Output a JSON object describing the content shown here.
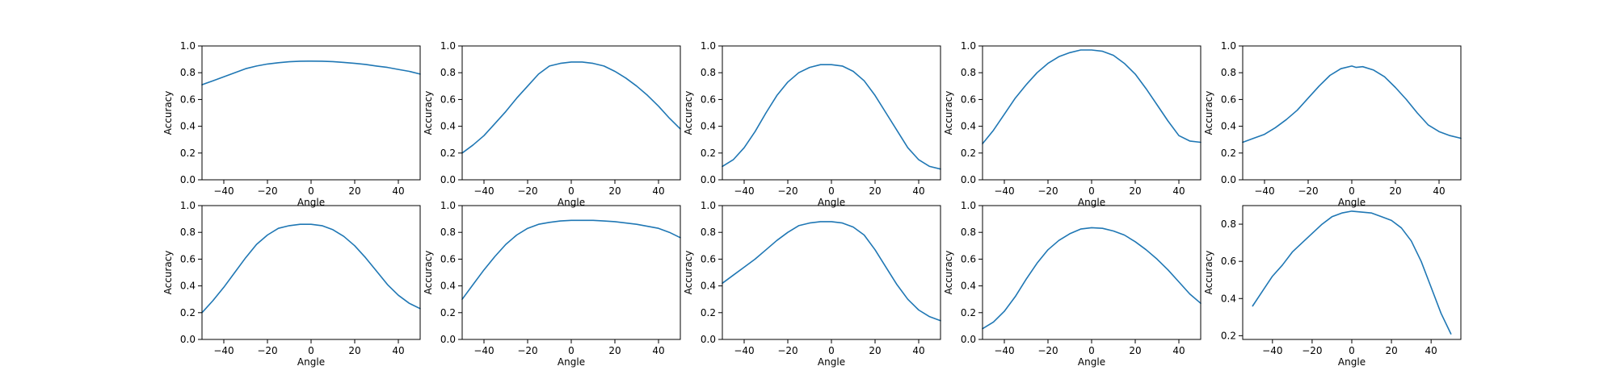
{
  "style": {
    "line_color": "#1f77b4",
    "background": "#ffffff"
  },
  "chart_data": [
    {
      "type": "line",
      "xlabel": "Angle",
      "ylabel": "Accuracy",
      "xlim": [
        -50,
        50
      ],
      "ylim": [
        0,
        1
      ],
      "xticks": [
        -40,
        -20,
        0,
        20,
        40
      ],
      "yticks": [
        0.0,
        0.2,
        0.4,
        0.6,
        0.8,
        1.0
      ],
      "xtick_labels": [
        "−40",
        "−20",
        "0",
        "20",
        "40"
      ],
      "ytick_labels": [
        "0.0",
        "0.2",
        "0.4",
        "0.6",
        "0.8",
        "1.0"
      ],
      "series": [
        {
          "x": [
            -50,
            -45,
            -40,
            -35,
            -30,
            -25,
            -20,
            -15,
            -10,
            -5,
            0,
            5,
            10,
            15,
            20,
            25,
            30,
            35,
            40,
            45,
            50
          ],
          "y": [
            0.71,
            0.74,
            0.77,
            0.8,
            0.83,
            0.85,
            0.865,
            0.875,
            0.882,
            0.886,
            0.887,
            0.886,
            0.883,
            0.877,
            0.87,
            0.862,
            0.85,
            0.84,
            0.825,
            0.81,
            0.79
          ]
        }
      ]
    },
    {
      "type": "line",
      "xlabel": "Angle",
      "ylabel": "Accuracy",
      "xlim": [
        -50,
        50
      ],
      "ylim": [
        0,
        1
      ],
      "xticks": [
        -40,
        -20,
        0,
        20,
        40
      ],
      "yticks": [
        0.0,
        0.2,
        0.4,
        0.6,
        0.8,
        1.0
      ],
      "xtick_labels": [
        "−40",
        "−20",
        "0",
        "20",
        "40"
      ],
      "ytick_labels": [
        "0.0",
        "0.2",
        "0.4",
        "0.6",
        "0.8",
        "1.0"
      ],
      "series": [
        {
          "x": [
            -50,
            -45,
            -40,
            -35,
            -30,
            -25,
            -20,
            -15,
            -10,
            -5,
            0,
            5,
            10,
            15,
            20,
            25,
            30,
            35,
            40,
            45,
            50
          ],
          "y": [
            0.2,
            0.26,
            0.33,
            0.42,
            0.51,
            0.61,
            0.7,
            0.79,
            0.85,
            0.87,
            0.88,
            0.88,
            0.87,
            0.85,
            0.81,
            0.76,
            0.7,
            0.63,
            0.55,
            0.46,
            0.38
          ]
        }
      ]
    },
    {
      "type": "line",
      "xlabel": "Angle",
      "ylabel": "Accuracy",
      "xlim": [
        -50,
        50
      ],
      "ylim": [
        0,
        1
      ],
      "xticks": [
        -40,
        -20,
        0,
        20,
        40
      ],
      "yticks": [
        0.0,
        0.2,
        0.4,
        0.6,
        0.8,
        1.0
      ],
      "xtick_labels": [
        "−40",
        "−20",
        "0",
        "20",
        "40"
      ],
      "ytick_labels": [
        "0.0",
        "0.2",
        "0.4",
        "0.6",
        "0.8",
        "1.0"
      ],
      "series": [
        {
          "x": [
            -50,
            -45,
            -40,
            -35,
            -30,
            -25,
            -20,
            -15,
            -10,
            -5,
            0,
            5,
            10,
            15,
            20,
            25,
            30,
            35,
            40,
            45,
            50
          ],
          "y": [
            0.1,
            0.15,
            0.24,
            0.36,
            0.5,
            0.63,
            0.73,
            0.8,
            0.84,
            0.86,
            0.86,
            0.85,
            0.81,
            0.74,
            0.63,
            0.5,
            0.37,
            0.24,
            0.15,
            0.1,
            0.08
          ]
        }
      ]
    },
    {
      "type": "line",
      "xlabel": "Angle",
      "ylabel": "Accuracy",
      "xlim": [
        -50,
        50
      ],
      "ylim": [
        0,
        1
      ],
      "xticks": [
        -40,
        -20,
        0,
        20,
        40
      ],
      "yticks": [
        0.0,
        0.2,
        0.4,
        0.6,
        0.8,
        1.0
      ],
      "xtick_labels": [
        "−40",
        "−20",
        "0",
        "20",
        "40"
      ],
      "ytick_labels": [
        "0.0",
        "0.2",
        "0.4",
        "0.6",
        "0.8",
        "1.0"
      ],
      "series": [
        {
          "x": [
            -50,
            -45,
            -40,
            -35,
            -30,
            -25,
            -20,
            -15,
            -10,
            -5,
            0,
            5,
            10,
            15,
            20,
            25,
            30,
            35,
            40,
            45,
            50
          ],
          "y": [
            0.27,
            0.37,
            0.49,
            0.61,
            0.71,
            0.8,
            0.87,
            0.92,
            0.95,
            0.97,
            0.97,
            0.96,
            0.93,
            0.87,
            0.79,
            0.68,
            0.56,
            0.44,
            0.33,
            0.29,
            0.28
          ]
        }
      ]
    },
    {
      "type": "line",
      "xlabel": "Angle",
      "ylabel": "Accuracy",
      "xlim": [
        -50,
        50
      ],
      "ylim": [
        0,
        1
      ],
      "xticks": [
        -40,
        -20,
        0,
        20,
        40
      ],
      "yticks": [
        0.0,
        0.2,
        0.4,
        0.6,
        0.8,
        1.0
      ],
      "xtick_labels": [
        "−40",
        "−20",
        "0",
        "20",
        "40"
      ],
      "ytick_labels": [
        "0.0",
        "0.2",
        "0.4",
        "0.6",
        "0.8",
        "1.0"
      ],
      "series": [
        {
          "x": [
            -50,
            -45,
            -40,
            -35,
            -30,
            -25,
            -20,
            -15,
            -10,
            -5,
            0,
            2,
            5,
            10,
            15,
            20,
            25,
            30,
            35,
            40,
            45,
            50
          ],
          "y": [
            0.28,
            0.31,
            0.34,
            0.39,
            0.45,
            0.52,
            0.61,
            0.7,
            0.78,
            0.83,
            0.85,
            0.84,
            0.845,
            0.82,
            0.77,
            0.69,
            0.6,
            0.5,
            0.41,
            0.36,
            0.33,
            0.31
          ]
        }
      ]
    },
    {
      "type": "line",
      "xlabel": "Angle",
      "ylabel": "Accuracy",
      "xlim": [
        -50,
        50
      ],
      "ylim": [
        0,
        1
      ],
      "xticks": [
        -40,
        -20,
        0,
        20,
        40
      ],
      "yticks": [
        0.0,
        0.2,
        0.4,
        0.6,
        0.8,
        1.0
      ],
      "xtick_labels": [
        "−40",
        "−20",
        "0",
        "20",
        "40"
      ],
      "ytick_labels": [
        "0.0",
        "0.2",
        "0.4",
        "0.6",
        "0.8",
        "1.0"
      ],
      "series": [
        {
          "x": [
            -50,
            -45,
            -40,
            -35,
            -30,
            -25,
            -20,
            -15,
            -10,
            -5,
            0,
            5,
            10,
            15,
            20,
            25,
            30,
            35,
            40,
            45,
            50
          ],
          "y": [
            0.2,
            0.29,
            0.39,
            0.5,
            0.61,
            0.71,
            0.78,
            0.83,
            0.85,
            0.86,
            0.86,
            0.85,
            0.82,
            0.77,
            0.7,
            0.61,
            0.51,
            0.41,
            0.33,
            0.27,
            0.23
          ]
        }
      ]
    },
    {
      "type": "line",
      "xlabel": "Angle",
      "ylabel": "Accuracy",
      "xlim": [
        -50,
        50
      ],
      "ylim": [
        0,
        1
      ],
      "xticks": [
        -40,
        -20,
        0,
        20,
        40
      ],
      "yticks": [
        0.0,
        0.2,
        0.4,
        0.6,
        0.8,
        1.0
      ],
      "xtick_labels": [
        "−40",
        "−20",
        "0",
        "20",
        "40"
      ],
      "ytick_labels": [
        "0.0",
        "0.2",
        "0.4",
        "0.6",
        "0.8",
        "1.0"
      ],
      "series": [
        {
          "x": [
            -50,
            -45,
            -40,
            -35,
            -30,
            -25,
            -20,
            -15,
            -10,
            -5,
            0,
            5,
            10,
            15,
            20,
            25,
            30,
            35,
            40,
            45,
            50
          ],
          "y": [
            0.3,
            0.41,
            0.52,
            0.62,
            0.71,
            0.78,
            0.83,
            0.86,
            0.875,
            0.885,
            0.89,
            0.89,
            0.89,
            0.885,
            0.88,
            0.87,
            0.86,
            0.845,
            0.83,
            0.8,
            0.76
          ]
        }
      ]
    },
    {
      "type": "line",
      "xlabel": "Angle",
      "ylabel": "Accuracy",
      "xlim": [
        -50,
        50
      ],
      "ylim": [
        0,
        1
      ],
      "xticks": [
        -40,
        -20,
        0,
        20,
        40
      ],
      "yticks": [
        0.0,
        0.2,
        0.4,
        0.6,
        0.8,
        1.0
      ],
      "xtick_labels": [
        "−40",
        "−20",
        "0",
        "20",
        "40"
      ],
      "ytick_labels": [
        "0.0",
        "0.2",
        "0.4",
        "0.6",
        "0.8",
        "1.0"
      ],
      "series": [
        {
          "x": [
            -50,
            -45,
            -40,
            -35,
            -30,
            -25,
            -20,
            -15,
            -10,
            -5,
            0,
            5,
            10,
            15,
            20,
            25,
            30,
            35,
            40,
            45,
            50
          ],
          "y": [
            0.42,
            0.48,
            0.54,
            0.6,
            0.67,
            0.74,
            0.8,
            0.85,
            0.87,
            0.88,
            0.88,
            0.87,
            0.84,
            0.78,
            0.67,
            0.54,
            0.41,
            0.3,
            0.22,
            0.17,
            0.14
          ]
        }
      ]
    },
    {
      "type": "line",
      "xlabel": "Angle",
      "ylabel": "Accuracy",
      "xlim": [
        -50,
        50
      ],
      "ylim": [
        0,
        1
      ],
      "xticks": [
        -40,
        -20,
        0,
        20,
        40
      ],
      "yticks": [
        0.0,
        0.2,
        0.4,
        0.6,
        0.8,
        1.0
      ],
      "xtick_labels": [
        "−40",
        "−20",
        "0",
        "20",
        "40"
      ],
      "ytick_labels": [
        "0.0",
        "0.2",
        "0.4",
        "0.6",
        "0.8",
        "1.0"
      ],
      "series": [
        {
          "x": [
            -50,
            -45,
            -40,
            -35,
            -30,
            -25,
            -20,
            -15,
            -10,
            -5,
            0,
            5,
            10,
            15,
            20,
            25,
            30,
            35,
            40,
            45,
            50
          ],
          "y": [
            0.08,
            0.13,
            0.21,
            0.32,
            0.45,
            0.57,
            0.67,
            0.74,
            0.79,
            0.825,
            0.835,
            0.83,
            0.81,
            0.78,
            0.73,
            0.67,
            0.6,
            0.52,
            0.43,
            0.34,
            0.27
          ]
        }
      ]
    },
    {
      "type": "line",
      "xlabel": "Angle",
      "ylabel": "Accuracy",
      "xlim": [
        -55,
        55
      ],
      "ylim": [
        0.18,
        0.9
      ],
      "xticks": [
        -40,
        -20,
        0,
        20,
        40
      ],
      "yticks": [
        0.2,
        0.4,
        0.6,
        0.8
      ],
      "xtick_labels": [
        "−40",
        "−20",
        "0",
        "20",
        "40"
      ],
      "ytick_labels": [
        "0.2",
        "0.4",
        "0.6",
        "0.8"
      ],
      "series": [
        {
          "x": [
            -50,
            -45,
            -40,
            -35,
            -30,
            -25,
            -20,
            -15,
            -10,
            -5,
            0,
            5,
            10,
            15,
            20,
            25,
            30,
            35,
            40,
            45,
            50
          ],
          "y": [
            0.36,
            0.44,
            0.52,
            0.58,
            0.65,
            0.7,
            0.75,
            0.8,
            0.84,
            0.86,
            0.87,
            0.865,
            0.86,
            0.84,
            0.82,
            0.78,
            0.71,
            0.6,
            0.46,
            0.32,
            0.21
          ]
        }
      ]
    }
  ]
}
